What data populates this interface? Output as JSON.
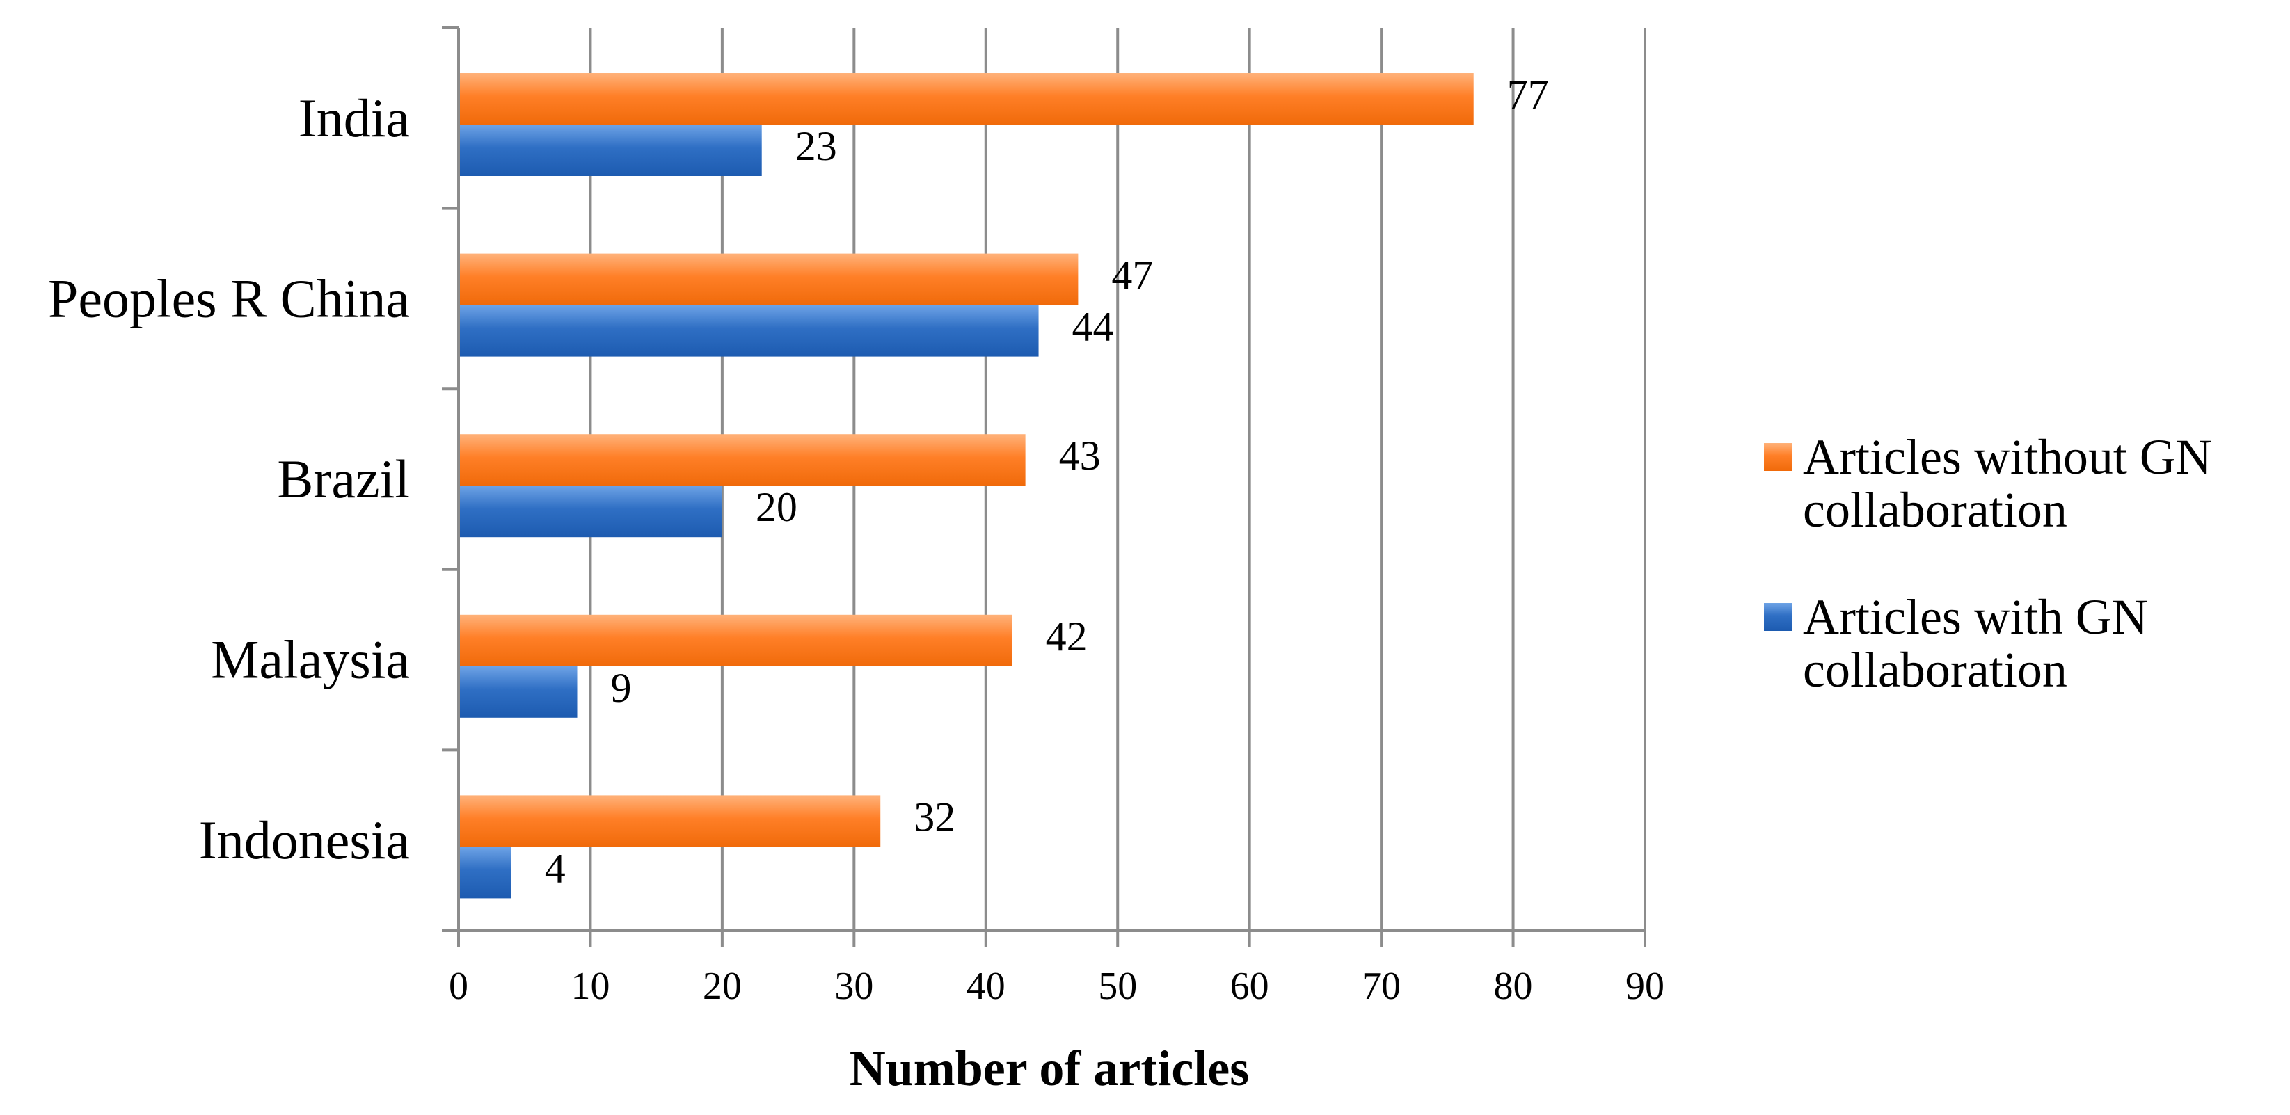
{
  "chart_data": {
    "type": "bar",
    "orientation": "horizontal",
    "categories": [
      "India",
      "Peoples R China",
      "Brazil",
      "Malaysia",
      "Indonesia"
    ],
    "series": [
      {
        "name": "Articles without GN collaboration",
        "values": [
          77,
          47,
          43,
          42,
          32
        ],
        "color": "#ff7f27"
      },
      {
        "name": "Articles with GN collaboration",
        "values": [
          23,
          44,
          20,
          9,
          4
        ],
        "color": "#2f6fc4"
      }
    ],
    "data_labels": {
      "without": [
        "77",
        "47",
        "43",
        "42",
        "32"
      ],
      "with": [
        "23",
        "44",
        "20",
        "9",
        "4"
      ]
    },
    "xlabel": "Number of articles",
    "ylabel": "",
    "xlim": [
      0,
      90
    ],
    "x_ticks": [
      "0",
      "10",
      "20",
      "30",
      "40",
      "50",
      "60",
      "70",
      "80",
      "90"
    ],
    "grid": "vertical",
    "legend": {
      "position": "right",
      "entries": [
        {
          "line1": "Articles without GN",
          "line2": "collaboration"
        },
        {
          "line1": "Articles with GN",
          "line2": "collaboration"
        }
      ]
    }
  }
}
